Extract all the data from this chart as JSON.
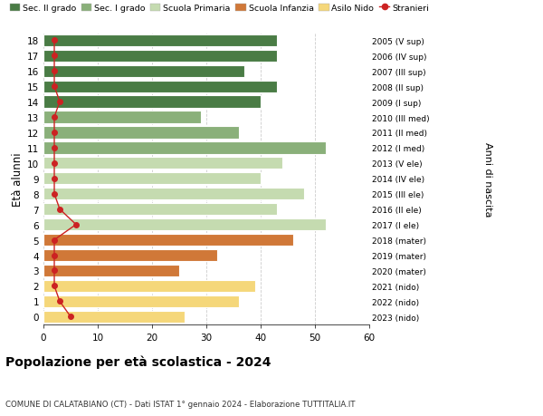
{
  "ages": [
    18,
    17,
    16,
    15,
    14,
    13,
    12,
    11,
    10,
    9,
    8,
    7,
    6,
    5,
    4,
    3,
    2,
    1,
    0
  ],
  "years": [
    "2005 (V sup)",
    "2006 (IV sup)",
    "2007 (III sup)",
    "2008 (II sup)",
    "2009 (I sup)",
    "2010 (III med)",
    "2011 (II med)",
    "2012 (I med)",
    "2013 (V ele)",
    "2014 (IV ele)",
    "2015 (III ele)",
    "2016 (II ele)",
    "2017 (I ele)",
    "2018 (mater)",
    "2019 (mater)",
    "2020 (mater)",
    "2021 (nido)",
    "2022 (nido)",
    "2023 (nido)"
  ],
  "values": [
    43,
    43,
    37,
    43,
    40,
    29,
    36,
    52,
    44,
    40,
    48,
    43,
    52,
    46,
    32,
    25,
    39,
    36,
    26
  ],
  "stranieri": [
    2,
    2,
    2,
    2,
    3,
    2,
    2,
    2,
    2,
    2,
    2,
    3,
    6,
    2,
    2,
    2,
    2,
    3,
    5
  ],
  "colors": {
    "sec2": "#4a7c45",
    "sec1": "#8ab07a",
    "primaria": "#c5dbb0",
    "infanzia": "#d07838",
    "nido": "#f5d77a",
    "stranieri": "#cc2222"
  },
  "category_colors": [
    "#4a7c45",
    "#4a7c45",
    "#4a7c45",
    "#4a7c45",
    "#4a7c45",
    "#8ab07a",
    "#8ab07a",
    "#8ab07a",
    "#c5dbb0",
    "#c5dbb0",
    "#c5dbb0",
    "#c5dbb0",
    "#c5dbb0",
    "#d07838",
    "#d07838",
    "#d07838",
    "#f5d77a",
    "#f5d77a",
    "#f5d77a"
  ],
  "title": "Popolazione per età scolastica - 2024",
  "subtitle": "COMUNE DI CALATABIANO (CT) - Dati ISTAT 1° gennaio 2024 - Elaborazione TUTTITALIA.IT",
  "ylabel": "Età alunni",
  "right_label": "Anni di nascita",
  "xlim": [
    0,
    60
  ],
  "legend_labels": [
    "Sec. II grado",
    "Sec. I grado",
    "Scuola Primaria",
    "Scuola Infanzia",
    "Asilo Nido",
    "Stranieri"
  ],
  "legend_colors": [
    "#4a7c45",
    "#8ab07a",
    "#c5dbb0",
    "#d07838",
    "#f5d77a",
    "#cc2222"
  ],
  "bg_color": "#ffffff"
}
